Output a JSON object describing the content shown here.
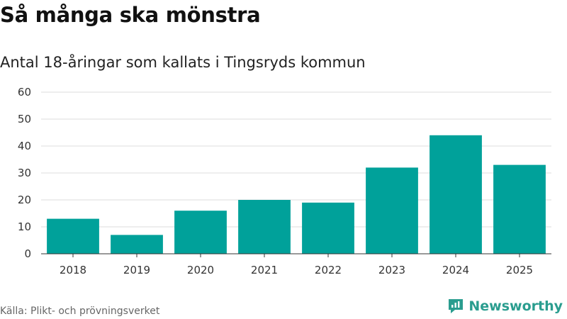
{
  "header": {
    "title": "Så många ska mönstra",
    "subtitle": "Antal 18-åringar som kallats i Tingsryds kommun"
  },
  "footer": {
    "source": "Källa: Plikt- och prövningsverket",
    "brand": "Newsworthy"
  },
  "colors": {
    "bar": "#00a19a",
    "grid": "#dddddd",
    "axis": "#333333",
    "brand": "#2a9d8f"
  },
  "chart_data": {
    "type": "bar",
    "title": "",
    "xlabel": "",
    "ylabel": "",
    "categories": [
      "2018",
      "2019",
      "2020",
      "2021",
      "2022",
      "2023",
      "2024",
      "2025"
    ],
    "values": [
      13,
      7,
      16,
      20,
      19,
      32,
      44,
      33
    ],
    "ylim": [
      0,
      60
    ],
    "yticks": [
      0,
      10,
      20,
      30,
      40,
      50,
      60
    ],
    "grid": true,
    "legend": "none"
  }
}
